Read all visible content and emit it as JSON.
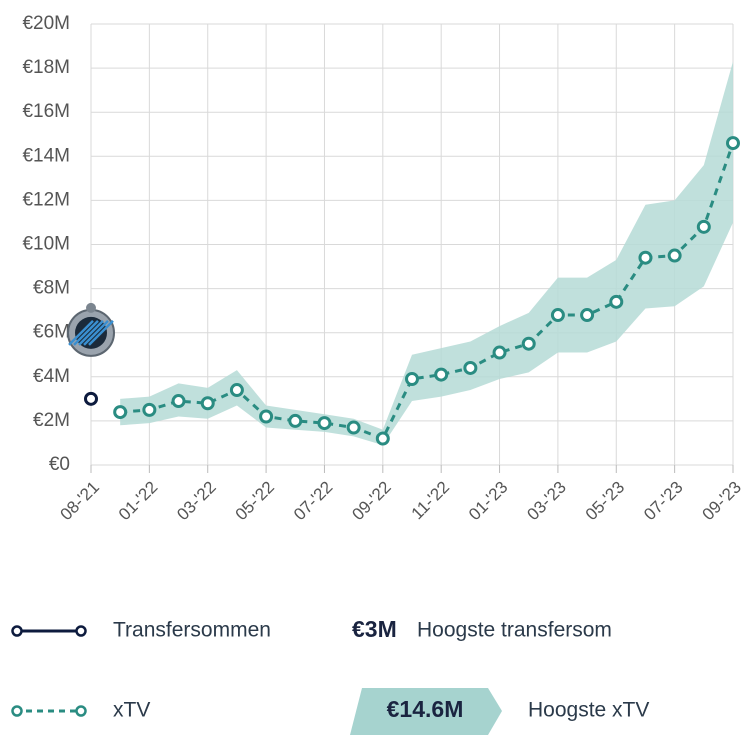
{
  "chart_data": {
    "type": "line",
    "categories": [
      "08-'21",
      null,
      "01-'22",
      null,
      "03-'22",
      null,
      "05-'22",
      null,
      "07-'22",
      null,
      "09-'22",
      null,
      "11-'22",
      null,
      "01-'23",
      null,
      "03-'23",
      null,
      "05-'23",
      null,
      "07-'23",
      null,
      "09-'23"
    ],
    "series": [
      {
        "name": "Transfersommen",
        "color": "#0d1b3e",
        "dashed": false,
        "values": [
          3,
          null,
          null,
          null,
          null,
          null,
          null,
          null,
          null,
          null,
          null,
          null,
          null,
          null,
          null,
          null,
          null,
          null,
          null,
          null,
          null,
          null,
          null
        ]
      },
      {
        "name": "xTV",
        "color": "#2a8c82",
        "dashed": true,
        "band_color": "#b5dad6",
        "values": [
          null,
          2.4,
          2.5,
          2.9,
          2.8,
          3.4,
          2.2,
          2.0,
          1.9,
          1.7,
          1.2,
          3.9,
          4.1,
          4.4,
          5.1,
          5.5,
          6.8,
          6.8,
          7.4,
          9.4,
          9.5,
          10.8,
          14.6
        ],
        "lower": [
          null,
          1.8,
          1.9,
          2.2,
          2.1,
          2.7,
          1.7,
          1.6,
          1.5,
          1.3,
          0.9,
          2.9,
          3.1,
          3.4,
          3.9,
          4.2,
          5.1,
          5.1,
          5.6,
          7.1,
          7.2,
          8.1,
          11.0
        ],
        "upper": [
          null,
          3.0,
          3.1,
          3.7,
          3.5,
          4.3,
          2.7,
          2.5,
          2.3,
          2.1,
          1.6,
          5.0,
          5.3,
          5.6,
          6.3,
          6.9,
          8.5,
          8.5,
          9.3,
          11.8,
          12.0,
          13.6,
          18.3
        ]
      }
    ],
    "ylim": [
      0,
      20
    ],
    "yticks": [
      {
        "value": 0,
        "label": "€0"
      },
      {
        "value": 2,
        "label": "€2M"
      },
      {
        "value": 4,
        "label": "€4M"
      },
      {
        "value": 6,
        "label": "€6M"
      },
      {
        "value": 8,
        "label": "€8M"
      },
      {
        "value": 10,
        "label": "€10M"
      },
      {
        "value": 12,
        "label": "€12M"
      },
      {
        "value": 14,
        "label": "€14M"
      },
      {
        "value": 16,
        "label": "€16M"
      },
      {
        "value": 18,
        "label": "€18M"
      },
      {
        "value": 20,
        "label": "€20M"
      }
    ],
    "grid": true,
    "summary": [
      {
        "value": 3,
        "value_label": "€3M",
        "label": "Hoogste transfersom"
      },
      {
        "value": 14.6,
        "value_label": "€14.6M",
        "label": "Hoogste xTV"
      }
    ]
  }
}
